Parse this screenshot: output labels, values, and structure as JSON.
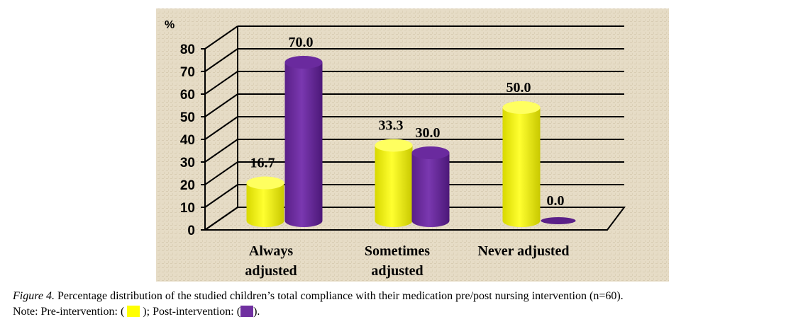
{
  "chart_data": {
    "type": "bar",
    "style": "3d-cylinder",
    "ylabel": "%",
    "ylim": [
      0,
      80
    ],
    "yticks": [
      "0",
      "10",
      "20",
      "30",
      "40",
      "50",
      "60",
      "70",
      "80"
    ],
    "categories": [
      [
        "Always",
        "adjusted"
      ],
      [
        "Sometimes",
        "adjusted"
      ],
      [
        "Never adjusted"
      ]
    ],
    "series": [
      {
        "name": "Pre-intervention",
        "color": "#ffff00",
        "values": [
          16.7,
          33.3,
          50.0
        ],
        "labels": [
          "16.7",
          "33.3",
          "50.0"
        ]
      },
      {
        "name": "Post-intervention",
        "color": "#7030a0",
        "values": [
          70.0,
          30.0,
          0.0
        ],
        "labels": [
          "70.0",
          "30.0",
          "0.0"
        ]
      }
    ],
    "grid": true
  },
  "caption": {
    "figure_label": "Figure  4.",
    "text": "Percentage distribution of the studied children’s total compliance with their medication pre/post nursing intervention (n=60).",
    "note_prefix": "Note: Pre-intervention: (",
    "note_middle": "); Post-intervention: (",
    "note_suffix": ")."
  }
}
